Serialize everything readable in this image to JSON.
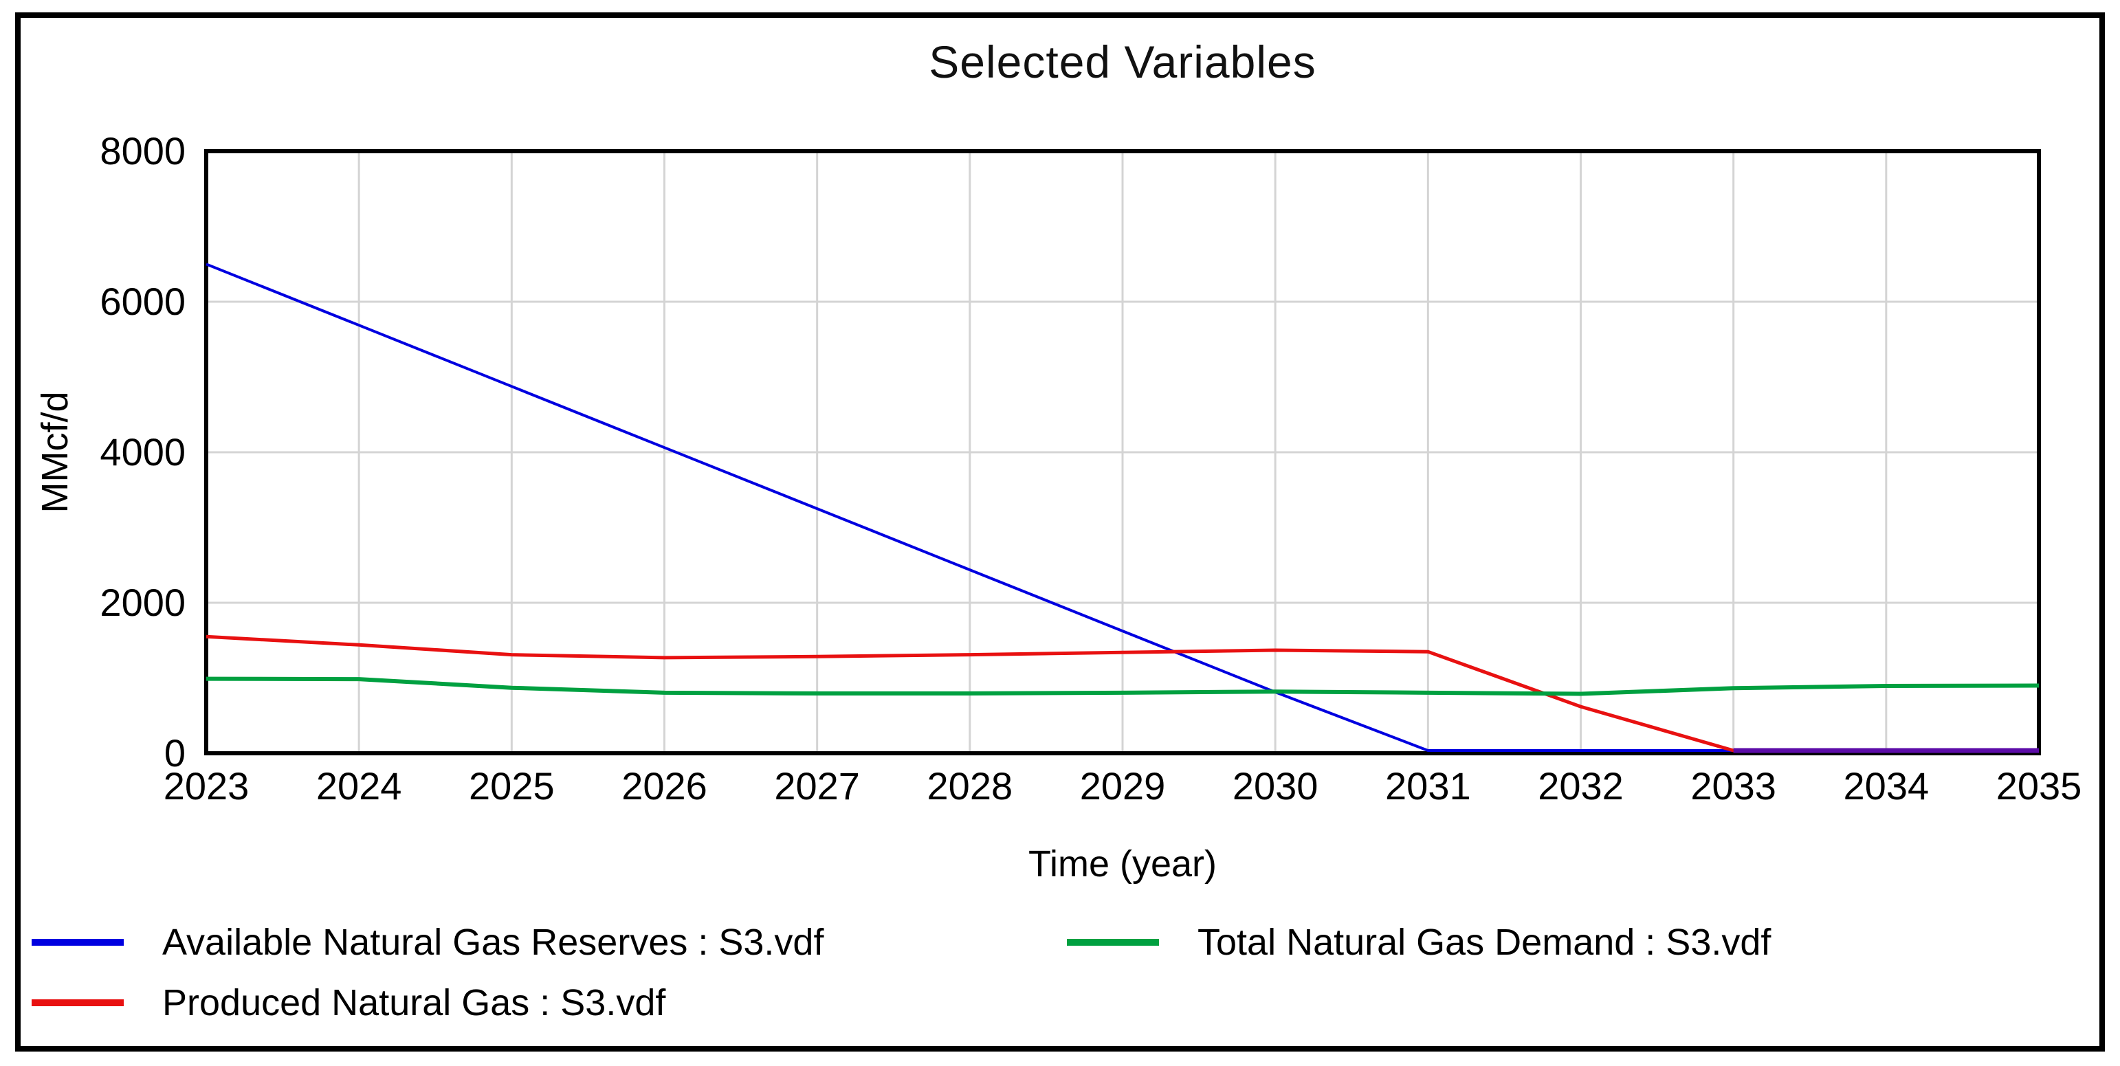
{
  "window": {
    "title": "Selected Variables"
  },
  "chart_data": {
    "type": "line",
    "title": "Selected Variables",
    "xlabel": "Time (year)",
    "ylabel": "MMcf/d",
    "xlim": [
      2023,
      2035
    ],
    "ylim": [
      0,
      8000
    ],
    "x_ticks": [
      2023,
      2024,
      2025,
      2026,
      2027,
      2028,
      2029,
      2030,
      2031,
      2032,
      2033,
      2034,
      2035
    ],
    "y_ticks": [
      0,
      2000,
      4000,
      6000,
      8000
    ],
    "grid": true,
    "gridline_color": "#d4d4d4",
    "legend_position": "bottom-two-columns",
    "x": [
      2023,
      2024,
      2025,
      2026,
      2027,
      2028,
      2029,
      2030,
      2031,
      2032,
      2033,
      2034,
      2035
    ],
    "series": [
      {
        "name": "Available Natural Gas Reserves : S3.vdf",
        "color": "#0000e0",
        "width": 4,
        "values": [
          6500,
          5687.5,
          4875,
          4062.5,
          3250,
          2437.5,
          1625,
          812.5,
          0,
          0,
          0,
          0,
          0
        ]
      },
      {
        "name": "Produced Natural Gas : S3.vdf",
        "color": "#e81111",
        "width": 5,
        "values": [
          1550,
          1440,
          1310,
          1270,
          1285,
          1310,
          1340,
          1370,
          1350,
          620,
          0,
          0,
          0
        ]
      },
      {
        "name": "Total Natural Gas Demand : S3.vdf",
        "color": "#00a040",
        "width": 6,
        "values": [
          990,
          985,
          870,
          805,
          795,
          795,
          805,
          820,
          805,
          790,
          865,
          895,
          900
        ]
      },
      {
        "name": "reserves-and-produced-overlap-at-zero",
        "color": "#5c0ca8",
        "width": 7,
        "x": [
          2033,
          2035
        ],
        "values": [
          0,
          0
        ],
        "show_in_legend": false
      }
    ]
  },
  "legend": {
    "items": [
      {
        "label": "Available Natural Gas Reserves : S3.vdf",
        "color": "#0000e0"
      },
      {
        "label": "Total Natural Gas Demand : S3.vdf",
        "color": "#00a040"
      },
      {
        "label": "Produced Natural Gas : S3.vdf",
        "color": "#e81111"
      }
    ]
  }
}
